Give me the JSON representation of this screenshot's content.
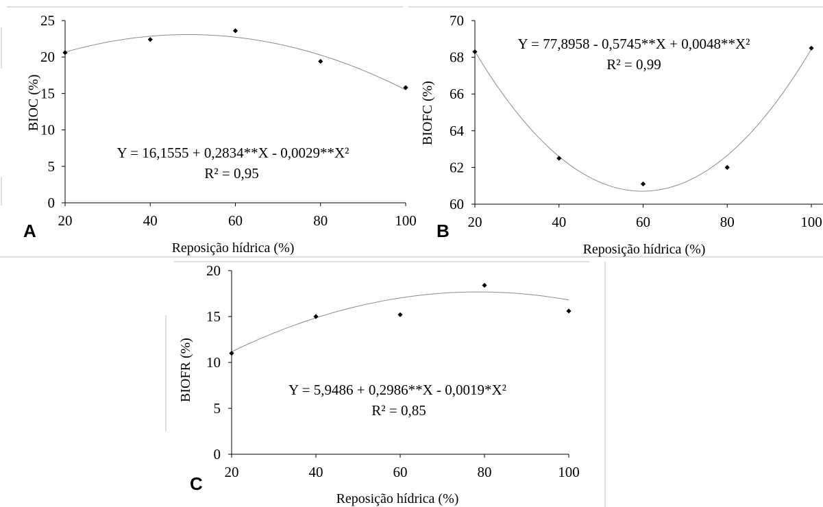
{
  "chart_data": [
    {
      "type": "scatter",
      "panel_label": "A",
      "ylabel": "BIOC (%)",
      "xlabel": "Reposição hídrica (%)",
      "xlim": [
        20,
        100
      ],
      "ylim": [
        0,
        25
      ],
      "xticks": [
        "20",
        "40",
        "60",
        "80",
        "100"
      ],
      "yticks": [
        "0",
        "5",
        "10",
        "15",
        "20",
        "25"
      ],
      "x": [
        20,
        40,
        60,
        80,
        100
      ],
      "y": [
        20.6,
        22.4,
        23.6,
        19.4,
        15.8
      ],
      "fit": {
        "a": 16.1555,
        "b": 0.2834,
        "c": -0.0029
      },
      "equation": "Y = 16,1555 + 0,2834**X - 0,0029**X²",
      "r2": "R² = 0,95"
    },
    {
      "type": "scatter",
      "panel_label": "B",
      "ylabel": "BIOFC (%)",
      "xlabel": "Reposição hídrica (%)",
      "xlim": [
        20,
        100
      ],
      "ylim": [
        60,
        70
      ],
      "xticks": [
        "20",
        "40",
        "60",
        "80",
        "100"
      ],
      "yticks": [
        "60",
        "62",
        "64",
        "66",
        "68",
        "70"
      ],
      "x": [
        20,
        40,
        60,
        80,
        100
      ],
      "y": [
        68.3,
        62.5,
        61.1,
        62.0,
        68.5
      ],
      "fit": {
        "a": 77.8958,
        "b": -0.5745,
        "c": 0.0048
      },
      "equation": "Y = 77,8958 - 0,5745**X + 0,0048**X²",
      "r2": "R² = 0,99"
    },
    {
      "type": "scatter",
      "panel_label": "C",
      "ylabel": "BIOFR (%)",
      "xlabel": "Reposição hídrica (%)",
      "xlim": [
        20,
        100
      ],
      "ylim": [
        0,
        20
      ],
      "xticks": [
        "20",
        "40",
        "60",
        "80",
        "100"
      ],
      "yticks": [
        "0",
        "5",
        "10",
        "15",
        "20"
      ],
      "x": [
        20,
        40,
        60,
        80,
        100
      ],
      "y": [
        11.0,
        15.0,
        15.2,
        18.4,
        15.6
      ],
      "fit": {
        "a": 5.9486,
        "b": 0.2986,
        "c": -0.0019
      },
      "equation": "Y = 5,9486 + 0,2986**X - 0,0019*X²",
      "r2": "R² = 0,85"
    }
  ]
}
